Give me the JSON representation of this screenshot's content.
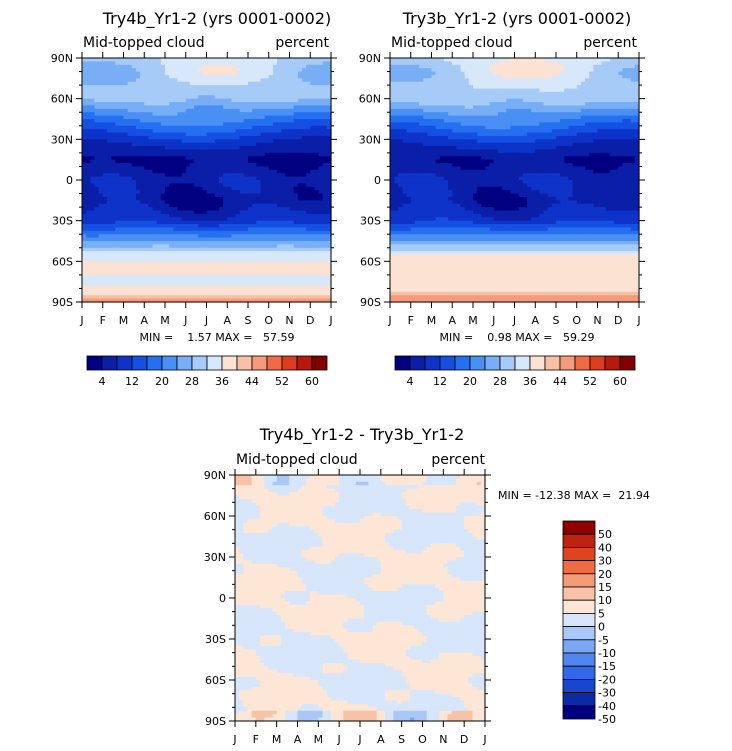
{
  "colors": {
    "seq": [
      "#000080",
      "#0a1ea8",
      "#0d33c9",
      "#1550e3",
      "#2470f0",
      "#4a8ff4",
      "#78aef5",
      "#a7cbf7",
      "#d8e8fb",
      "#fbe2d2",
      "#f7c1a6",
      "#f59a7a",
      "#f06a45",
      "#dd3c1f",
      "#b51a0c",
      "#800000"
    ],
    "diff": [
      "#00007f",
      "#0a2aa6",
      "#1846cf",
      "#2f68ea",
      "#5186ef",
      "#7ba6f3",
      "#a9c7f7",
      "#d7e6fa",
      "#fde6d6",
      "#f7c2a5",
      "#f49a74",
      "#ef6d45",
      "#e1431f",
      "#bf230f",
      "#8e0000"
    ]
  },
  "chart_data": [
    {
      "id": "panel1",
      "type": "heatmap",
      "title": "Try4b_Yr1-2 (yrs 0001-0002)",
      "subtitle_left": "Mid-topped cloud",
      "subtitle_right": "percent",
      "x_ticks": [
        "J",
        "F",
        "M",
        "A",
        "M",
        "J",
        "J",
        "A",
        "S",
        "O",
        "N",
        "D",
        "J"
      ],
      "y_ticks": [
        "90N",
        "60N",
        "30N",
        "0",
        "30S",
        "60S",
        "90S"
      ],
      "stats": "MIN =    1.57 MAX =   57.59",
      "levels": [
        4,
        8,
        12,
        16,
        20,
        24,
        28,
        32,
        36,
        40,
        44,
        48,
        52,
        56,
        60
      ],
      "colorbar_labels": [
        "4",
        "12",
        "20",
        "28",
        "36",
        "44",
        "52",
        "60"
      ],
      "lat_profile": [
        [
          90,
          32
        ],
        [
          75,
          30
        ],
        [
          60,
          30
        ],
        [
          45,
          20
        ],
        [
          30,
          10
        ],
        [
          15,
          3
        ],
        [
          0,
          7
        ],
        [
          -15,
          5
        ],
        [
          -30,
          10
        ],
        [
          -45,
          24
        ],
        [
          -55,
          34
        ],
        [
          -65,
          38
        ],
        [
          -75,
          34
        ],
        [
          -85,
          40
        ],
        [
          -90,
          46
        ]
      ]
    },
    {
      "id": "panel2",
      "type": "heatmap",
      "title": "Try3b_Yr1-2 (yrs 0001-0002)",
      "subtitle_left": "Mid-topped cloud",
      "subtitle_right": "percent",
      "x_ticks": [
        "J",
        "F",
        "M",
        "A",
        "M",
        "J",
        "J",
        "A",
        "S",
        "O",
        "N",
        "D",
        "J"
      ],
      "y_ticks": [
        "90N",
        "60N",
        "30N",
        "0",
        "30S",
        "60S",
        "90S"
      ],
      "stats": "MIN =    0.98 MAX =   59.29",
      "levels": [
        4,
        8,
        12,
        16,
        20,
        24,
        28,
        32,
        36,
        40,
        44,
        48,
        52,
        56,
        60
      ],
      "colorbar_labels": [
        "4",
        "12",
        "20",
        "28",
        "36",
        "44",
        "52",
        "60"
      ],
      "lat_profile": [
        [
          90,
          33
        ],
        [
          75,
          31
        ],
        [
          60,
          31
        ],
        [
          45,
          20
        ],
        [
          30,
          10
        ],
        [
          15,
          3
        ],
        [
          0,
          7
        ],
        [
          -15,
          5
        ],
        [
          -30,
          10
        ],
        [
          -45,
          24
        ],
        [
          -55,
          35
        ],
        [
          -65,
          39
        ],
        [
          -75,
          35
        ],
        [
          -85,
          42
        ],
        [
          -90,
          48
        ]
      ]
    },
    {
      "id": "panel3",
      "type": "heatmap",
      "title": "Try4b_Yr1-2 - Try3b_Yr1-2",
      "subtitle_left": "Mid-topped cloud",
      "subtitle_right": "percent",
      "x_ticks": [
        "J",
        "F",
        "M",
        "A",
        "M",
        "J",
        "J",
        "A",
        "S",
        "O",
        "N",
        "D",
        "J"
      ],
      "y_ticks": [
        "90N",
        "60N",
        "30N",
        "0",
        "30S",
        "60S",
        "90S"
      ],
      "stats": "MIN = -12.38 MAX =  21.94",
      "levels": [
        -50,
        -40,
        -30,
        -20,
        -15,
        -10,
        -5,
        0,
        5,
        10,
        15,
        20,
        30,
        40,
        50
      ],
      "colorbar_labels": [
        "50",
        "40",
        "30",
        "20",
        "15",
        "10",
        "5",
        "0",
        "-5",
        "-10",
        "-15",
        "-20",
        "-30",
        "-40",
        "-50"
      ]
    }
  ]
}
